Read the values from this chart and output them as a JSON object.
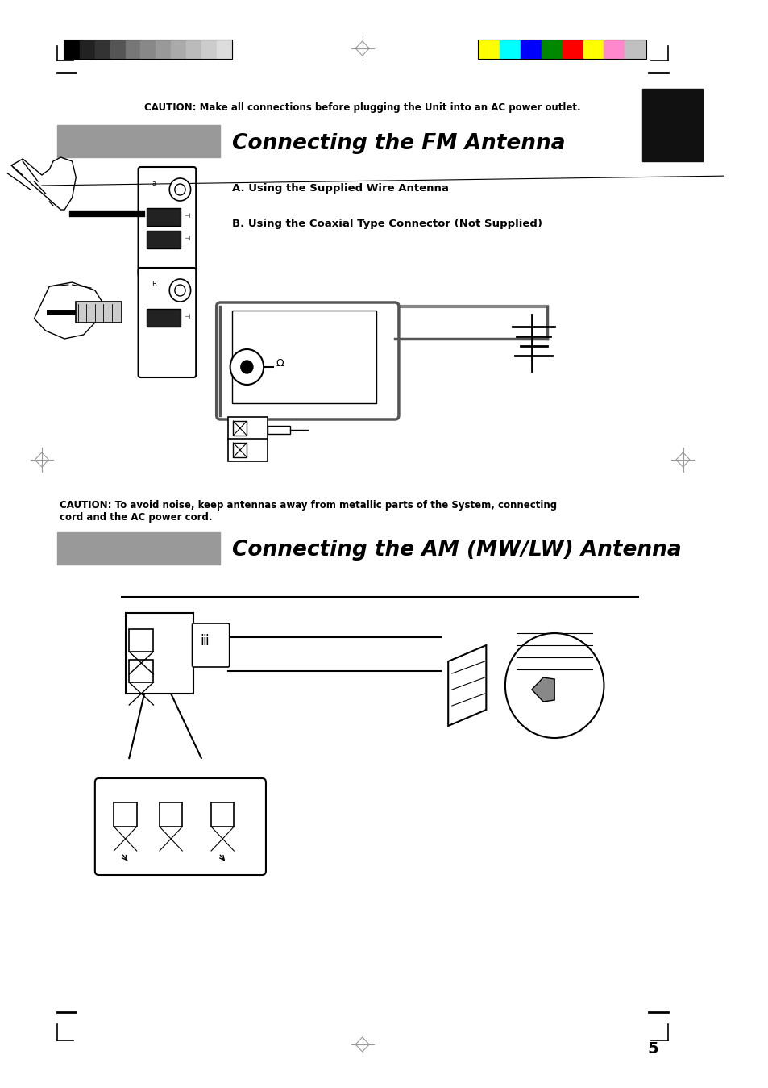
{
  "bg_color": "#ffffff",
  "page_width": 9.54,
  "page_height": 13.49,
  "caution_text_1": "CAUTION: Make all connections before plugging the Unit into an AC power outlet.",
  "fm_title": "Connecting the FM Antenna",
  "fm_title_bar_color": "#999999",
  "label_a": "A. Using the Supplied Wire Antenna",
  "label_b": "B. Using the Coaxial Type Connector (Not Supplied)",
  "caution_text_2": "CAUTION: To avoid noise, keep antennas away from metallic parts of the System, connecting\ncord and the AC power cord.",
  "am_title": "Connecting the AM (MW/LW) Antenna",
  "am_title_bar_color": "#999999",
  "page_number": "5",
  "grayscale_colors": [
    "#000000",
    "#222222",
    "#333333",
    "#555555",
    "#777777",
    "#888888",
    "#999999",
    "#aaaaaa",
    "#bbbbbb",
    "#cccccc",
    "#dddddd"
  ],
  "cbar_colors": [
    "#ffff00",
    "#00ffff",
    "#0000ff",
    "#008800",
    "#ff0000",
    "#ffff00",
    "#ff88cc",
    "#c0c0c0"
  ]
}
